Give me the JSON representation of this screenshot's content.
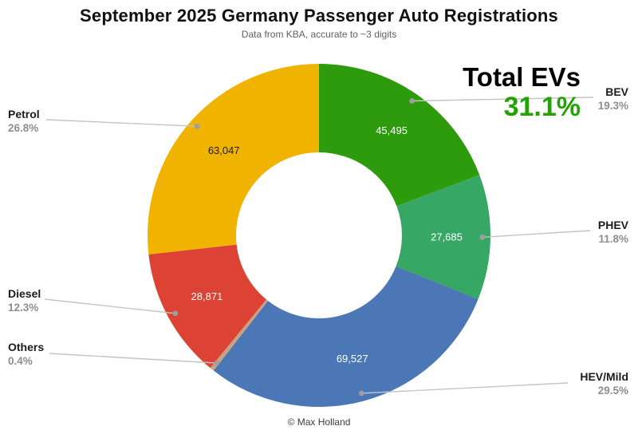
{
  "title": "September 2025 Germany Passenger Auto Registrations",
  "subtitle": "Data from KBA, accurate to ~3 digits",
  "footer": "© Max Holland",
  "annotation": {
    "label": "Total EVs",
    "value": "31.1%",
    "value_color": "#23a303"
  },
  "chart_data": {
    "type": "pie",
    "donut": true,
    "start_angle": "top",
    "direction": "clockwise",
    "legend_position": "outside-callouts",
    "slices": [
      {
        "name": "BEV",
        "value": 45495,
        "value_label": "45,495",
        "pct": 19.3,
        "pct_label": "19.3%",
        "color": "#2e9b0d",
        "text_color": "#ffffff"
      },
      {
        "name": "PHEV",
        "value": 27685,
        "value_label": "27,685",
        "pct": 11.8,
        "pct_label": "11.8%",
        "color": "#36a765",
        "text_color": "#ffffff"
      },
      {
        "name": "HEV/Mild",
        "value": 69527,
        "value_label": "69,527",
        "pct": 29.5,
        "pct_label": "29.5%",
        "color": "#4b77b6",
        "text_color": "#ffffff"
      },
      {
        "name": "Others",
        "value": null,
        "value_label": "",
        "pct": 0.4,
        "pct_label": "0.4%",
        "color": "#c9a284",
        "text_color": "#ffffff"
      },
      {
        "name": "Diesel",
        "value": 28871,
        "value_label": "28,871",
        "pct": 12.3,
        "pct_label": "12.3%",
        "color": "#dc4334",
        "text_color": "#ffffff"
      },
      {
        "name": "Petrol",
        "value": 63047,
        "value_label": "63,047",
        "pct": 26.8,
        "pct_label": "26.8%",
        "color": "#f0b400",
        "text_color": "#202020"
      }
    ]
  }
}
